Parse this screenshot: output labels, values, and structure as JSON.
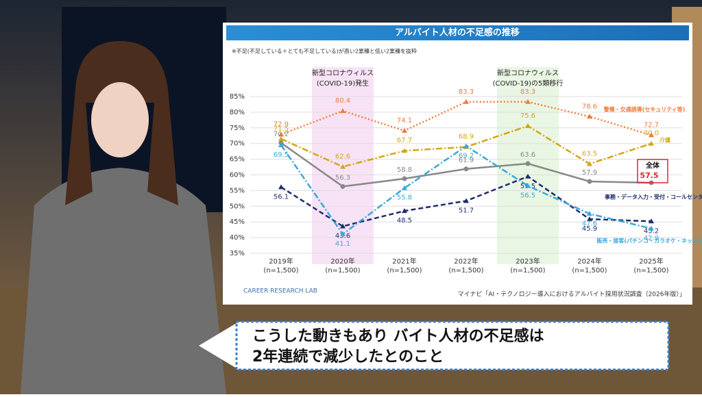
{
  "chart_data": {
    "type": "line",
    "title": "アルバイト人材の不足感の推移",
    "subtitle": "※不足(不足している＋とても不足している)が高い2業種と低い2業種を抜粋",
    "source": "マイナビ「AI・テクノロジー導入におけるアルバイト採用状況調査（2026年版）」",
    "logo": "CAREER RESEARCH LAB",
    "categories": [
      "2019年",
      "2020年",
      "2021年",
      "2022年",
      "2023年",
      "2024年",
      "2025年"
    ],
    "category_notes": [
      "(n=1,500)",
      "(n=1,500)",
      "(n=1,500)",
      "(n=1,500)",
      "(n=1,500)",
      "(n=1,500)",
      "(n=1,500)"
    ],
    "ylim": [
      35,
      85
    ],
    "yticks": [
      {
        "value": 35,
        "label": "35%"
      },
      {
        "value": 40,
        "label": "40%"
      },
      {
        "value": 45,
        "label": "45%"
      },
      {
        "value": 50,
        "label": "50%"
      },
      {
        "value": 55,
        "label": "55%"
      },
      {
        "value": 60,
        "label": "60%"
      },
      {
        "value": 65,
        "label": "65%"
      },
      {
        "value": 70,
        "label": "70%"
      },
      {
        "value": 75,
        "label": "75%"
      },
      {
        "value": 80,
        "label": "80%"
      },
      {
        "value": 85,
        "label": "85%"
      }
    ],
    "grid": true,
    "annotations": [
      {
        "text": [
          "新型コロナウィルス",
          "(COVID-19)発生"
        ],
        "category": "2020年",
        "color": "#f8e3f6"
      },
      {
        "text": [
          "新型コロナウィルス",
          "(COVID-19)の5類移行"
        ],
        "category": "2023年",
        "color": "#e9f6e3"
      }
    ],
    "series": [
      {
        "name": "警備・交通誘導(セキュリティ等)",
        "color": "#f07a3a",
        "dash": "dotted",
        "values": [
          72.9,
          80.4,
          74.1,
          83.3,
          83.3,
          78.6,
          72.7
        ]
      },
      {
        "name": "介護",
        "color": "#d4a514",
        "dash": "dashdot",
        "values": [
          71.5,
          62.6,
          67.7,
          68.9,
          75.6,
          63.5,
          70.0
        ],
        "value_labels": [
          "71.5",
          "62.6",
          "67.7",
          "68.9",
          "75.6",
          "63.5",
          "70.0"
        ]
      },
      {
        "name": "全体",
        "color": "#888888",
        "dash": "solid",
        "values": [
          70.2,
          56.3,
          58.8,
          61.9,
          63.6,
          57.9,
          57.5
        ]
      },
      {
        "name": "事務・データ入力・受付・コールセンター",
        "color": "#1f2d6e",
        "dash": "dashed",
        "values": [
          56.1,
          43.6,
          48.5,
          51.7,
          59.5,
          45.9,
          45.2
        ]
      },
      {
        "name": "販売・接客(パチンコ・カラオケ・ネットカフェ)",
        "color": "#3aa8d8",
        "dash": "dashdot",
        "values": [
          69.5,
          41.1,
          55.8,
          69.2,
          56.5,
          47.6,
          42.9
        ]
      }
    ]
  },
  "caption": {
    "lines": [
      "こうした動きもあり バイト人材の不足感は",
      "2年連続で減少したとのこと"
    ]
  }
}
